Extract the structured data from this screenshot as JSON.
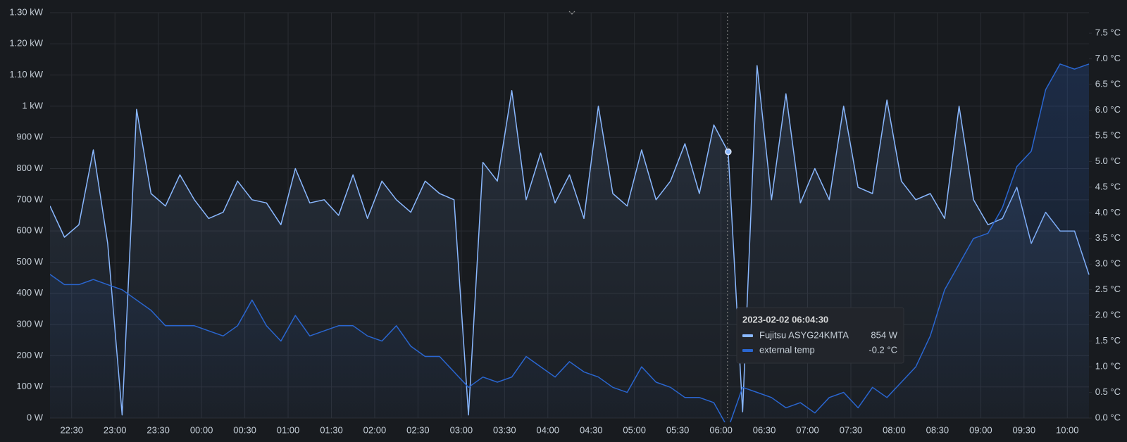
{
  "chart_data": {
    "type": "line",
    "x": [
      "22:15",
      "22:25",
      "22:35",
      "22:45",
      "22:55",
      "23:05",
      "23:15",
      "23:25",
      "23:35",
      "23:45",
      "23:55",
      "00:05",
      "00:15",
      "00:25",
      "00:35",
      "00:45",
      "00:55",
      "01:05",
      "01:15",
      "01:25",
      "01:35",
      "01:45",
      "01:55",
      "02:05",
      "02:15",
      "02:25",
      "02:35",
      "02:45",
      "02:55",
      "03:05",
      "03:15",
      "03:25",
      "03:35",
      "03:45",
      "03:55",
      "04:05",
      "04:15",
      "04:25",
      "04:35",
      "04:45",
      "04:55",
      "05:05",
      "05:15",
      "05:25",
      "05:35",
      "05:45",
      "05:55",
      "06:05",
      "06:15",
      "06:25",
      "06:35",
      "06:45",
      "06:55",
      "07:05",
      "07:15",
      "07:25",
      "07:35",
      "07:45",
      "07:55",
      "08:05",
      "08:15",
      "08:25",
      "08:35",
      "08:45",
      "08:55",
      "09:05",
      "09:15",
      "09:25",
      "09:35",
      "09:45",
      "09:55",
      "10:05",
      "10:15"
    ],
    "series": [
      {
        "name": "Fujitsu ASYG24KMTA",
        "color": "#8ab8ff",
        "values": [
          680,
          580,
          620,
          860,
          560,
          10,
          990,
          720,
          680,
          780,
          700,
          640,
          660,
          760,
          700,
          690,
          620,
          800,
          690,
          700,
          650,
          780,
          640,
          760,
          700,
          660,
          760,
          720,
          700,
          10,
          820,
          760,
          1050,
          700,
          850,
          690,
          780,
          640,
          1000,
          720,
          680,
          860,
          700,
          760,
          880,
          720,
          940,
          854,
          20,
          1130,
          700,
          1040,
          690,
          800,
          700,
          1000,
          740,
          720,
          1020,
          760,
          700,
          720,
          640,
          1000,
          700,
          620,
          640,
          740,
          560,
          660,
          600,
          600,
          460
        ]
      },
      {
        "name": "external temp",
        "color": "#2a66d0",
        "axis": "y2",
        "values": [
          2.8,
          2.6,
          2.6,
          2.7,
          2.6,
          2.5,
          2.3,
          2.1,
          1.8,
          1.8,
          1.8,
          1.7,
          1.6,
          1.8,
          2.3,
          1.8,
          1.5,
          2.0,
          1.6,
          1.7,
          1.8,
          1.8,
          1.6,
          1.5,
          1.8,
          1.4,
          1.2,
          1.2,
          0.9,
          0.6,
          0.8,
          0.7,
          0.8,
          1.2,
          1.0,
          0.8,
          1.1,
          0.9,
          0.8,
          0.6,
          0.5,
          1.0,
          0.7,
          0.6,
          0.4,
          0.4,
          0.3,
          -0.2,
          0.6,
          0.5,
          0.4,
          0.2,
          0.3,
          0.1,
          0.4,
          0.5,
          0.2,
          0.6,
          0.4,
          0.7,
          1.0,
          1.6,
          2.5,
          3.0,
          3.5,
          3.6,
          4.1,
          4.9,
          5.2,
          6.4,
          6.9,
          6.8,
          6.9
        ]
      }
    ],
    "xlim": [
      "22:15",
      "10:15"
    ],
    "xticks": [
      "22:30",
      "23:00",
      "23:30",
      "00:00",
      "00:30",
      "01:00",
      "01:30",
      "02:00",
      "02:30",
      "03:00",
      "03:30",
      "04:00",
      "04:30",
      "05:00",
      "05:30",
      "06:00",
      "06:30",
      "07:00",
      "07:30",
      "08:00",
      "08:30",
      "09:00",
      "09:30",
      "10:00"
    ],
    "ylim": [
      0,
      1300
    ],
    "yticks": [
      {
        "value": 0,
        "label": "0 W"
      },
      {
        "value": 100,
        "label": "100 W"
      },
      {
        "value": 200,
        "label": "200 W"
      },
      {
        "value": 300,
        "label": "300 W"
      },
      {
        "value": 400,
        "label": "400 W"
      },
      {
        "value": 500,
        "label": "500 W"
      },
      {
        "value": 600,
        "label": "600 W"
      },
      {
        "value": 700,
        "label": "700 W"
      },
      {
        "value": 800,
        "label": "800 W"
      },
      {
        "value": 900,
        "label": "900 W"
      },
      {
        "value": 1000,
        "label": "1 kW"
      },
      {
        "value": 1100,
        "label": "1.10 kW"
      },
      {
        "value": 1200,
        "label": "1.20 kW"
      },
      {
        "value": 1300,
        "label": "1.30 kW"
      }
    ],
    "y2lim": [
      0,
      7.9
    ],
    "y2ticks": [
      {
        "value": 0,
        "label": "0.0 °C"
      },
      {
        "value": 0.5,
        "label": "0.5 °C"
      },
      {
        "value": 1,
        "label": "1.0 °C"
      },
      {
        "value": 1.5,
        "label": "1.5 °C"
      },
      {
        "value": 2,
        "label": "2.0 °C"
      },
      {
        "value": 2.5,
        "label": "2.5 °C"
      },
      {
        "value": 3,
        "label": "3.0 °C"
      },
      {
        "value": 3.5,
        "label": "3.5 °C"
      },
      {
        "value": 4,
        "label": "4.0 °C"
      },
      {
        "value": 4.5,
        "label": "4.5 °C"
      },
      {
        "value": 5,
        "label": "5.0 °C"
      },
      {
        "value": 5.5,
        "label": "5.5 °C"
      },
      {
        "value": 6,
        "label": "6.0 °C"
      },
      {
        "value": 6.5,
        "label": "6.5 °C"
      },
      {
        "value": 7,
        "label": "7.0 °C"
      },
      {
        "value": 7.5,
        "label": "7.5 °C"
      }
    ],
    "grid": true,
    "tooltip": {
      "title": "2023-02-02 06:04:30",
      "value_labels": [
        "854 W",
        "-0.2 °C"
      ]
    }
  }
}
